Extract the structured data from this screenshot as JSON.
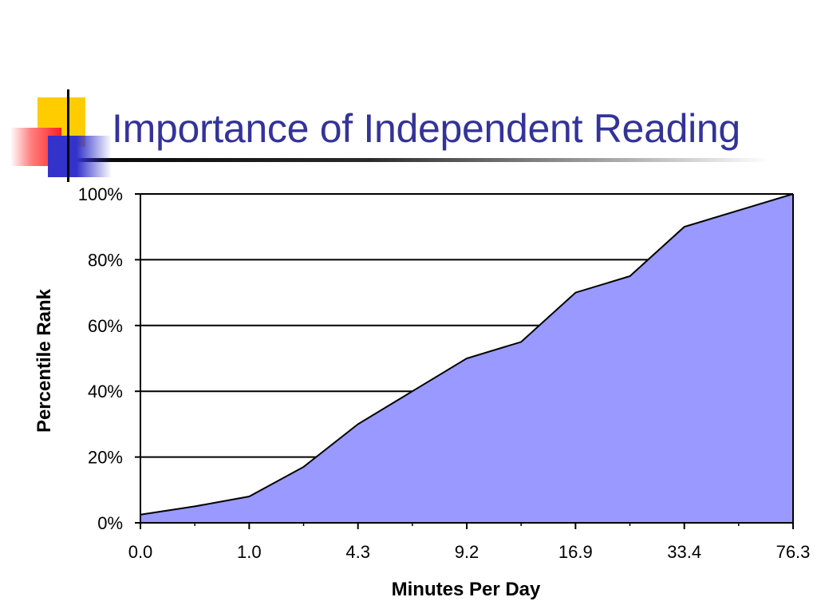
{
  "slide": {
    "title": "Importance of Independent Reading"
  },
  "colors": {
    "title": "#333399",
    "area_fill": "#9999ff",
    "decoration_yellow": "#ffcc00",
    "decoration_red": "#ff3333",
    "decoration_blue": "#3333cc"
  },
  "chart_data": {
    "type": "area",
    "title": "",
    "xlabel": "Minutes Per Day",
    "ylabel": "Percentile Rank",
    "x_tick_labels": [
      "0.0",
      "1.0",
      "4.3",
      "9.2",
      "16.9",
      "33.4",
      "76.3"
    ],
    "y_tick_labels": [
      "0%",
      "20%",
      "40%",
      "60%",
      "80%",
      "100%"
    ],
    "ylim": [
      0,
      100
    ],
    "grid": "horizontal",
    "legend": "none",
    "series": [
      {
        "x": [
          0,
          0.5,
          1,
          1.5,
          2,
          2.5,
          3,
          3.5,
          4,
          4.5,
          5,
          5.5,
          6
        ],
        "values": [
          2.5,
          5,
          8,
          17,
          30,
          40,
          50,
          55,
          70,
          75,
          90,
          95,
          100
        ]
      }
    ]
  }
}
